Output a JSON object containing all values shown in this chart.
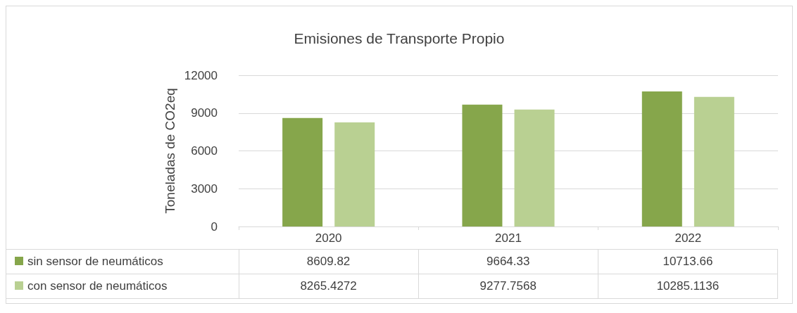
{
  "chart_data": {
    "type": "bar",
    "title": "Emisiones de Transporte Propio",
    "ylabel": "Toneladas de CO2eq",
    "categories": [
      "2020",
      "2021",
      "2022"
    ],
    "series": [
      {
        "name": "sin sensor de neumáticos",
        "color": "#86a64b",
        "values": [
          8609.82,
          9664.33,
          10713.66
        ]
      },
      {
        "name": "con sensor de neumáticos",
        "color": "#b9d092",
        "values": [
          8265.4272,
          9277.7568,
          10285.1136
        ]
      }
    ],
    "ylim": [
      0,
      12000
    ],
    "yticks": [
      0,
      3000,
      6000,
      9000,
      12000
    ],
    "grid": "y",
    "legend": "bottom",
    "data_labels": true
  }
}
